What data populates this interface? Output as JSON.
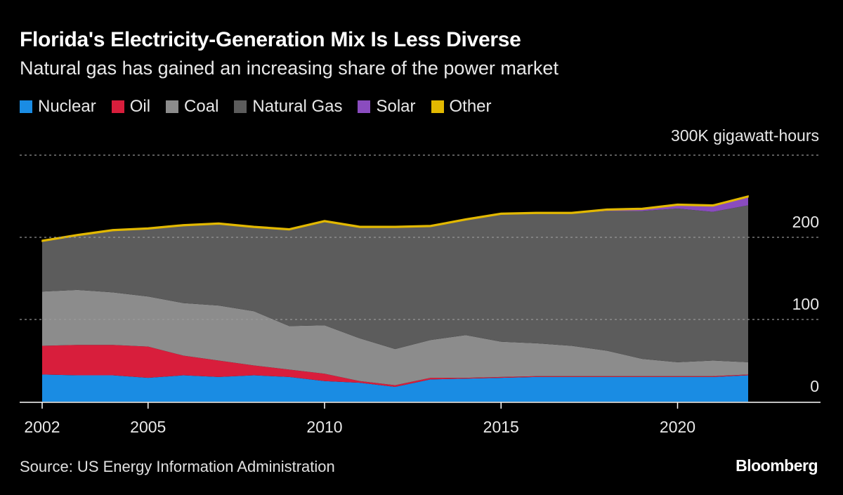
{
  "title": "Florida's Electricity-Generation Mix Is Less Diverse",
  "subtitle": "Natural gas has gained an increasing share of the power market",
  "source": "Source: US Energy Information Administration",
  "logo": "Bloomberg",
  "chart_data": {
    "type": "area",
    "stacked": true,
    "title": "Florida's Electricity-Generation Mix Is Less Diverse",
    "subtitle": "Natural gas has gained an increasing share of the power market",
    "ylabel": "300K gigawatt-hours",
    "ylim": [
      0,
      300
    ],
    "yticks": [
      {
        "value": 0,
        "label": "0"
      },
      {
        "value": 100,
        "label": "100"
      },
      {
        "value": 200,
        "label": "200"
      },
      {
        "value": 300,
        "label": "300K gigawatt-hours"
      }
    ],
    "xticks": [
      2002,
      2005,
      2010,
      2015,
      2020
    ],
    "xtick_labels": [
      "2002",
      "2005",
      "2010",
      "2015",
      "2020"
    ],
    "grid": "horizontal dotted",
    "legend_placement": "top-left",
    "x": [
      2002,
      2003,
      2004,
      2005,
      2006,
      2007,
      2008,
      2009,
      2010,
      2011,
      2012,
      2013,
      2014,
      2015,
      2016,
      2017,
      2018,
      2019,
      2020,
      2021,
      2022
    ],
    "series": [
      {
        "name": "Nuclear",
        "color": "#1a8ce3",
        "values": [
          33,
          32,
          32,
          29,
          32,
          30,
          32,
          30,
          25,
          23,
          18,
          27,
          28,
          29,
          30,
          30,
          30,
          30,
          30,
          30,
          32
        ]
      },
      {
        "name": "Oil",
        "color": "#d81e3c",
        "values": [
          35,
          37,
          37,
          38,
          24,
          20,
          12,
          9,
          9,
          2,
          2,
          2,
          1,
          1,
          1,
          1,
          1,
          1,
          1,
          1,
          1
        ]
      },
      {
        "name": "Coal",
        "color": "#8c8c8c",
        "values": [
          66,
          67,
          64,
          61,
          64,
          67,
          66,
          53,
          59,
          52,
          44,
          46,
          52,
          43,
          40,
          37,
          31,
          21,
          17,
          19,
          15
        ]
      },
      {
        "name": "Natural Gas",
        "color": "#5c5c5c",
        "values": [
          61,
          66,
          75,
          82,
          94,
          99,
          102,
          117,
          126,
          135,
          148,
          138,
          140,
          155,
          158,
          161,
          170,
          180,
          187,
          181,
          191
        ]
      },
      {
        "name": "Solar",
        "color": "#8a4cbf",
        "values": [
          0,
          0,
          0,
          0,
          0,
          0,
          0,
          0,
          0,
          0,
          0,
          0,
          0,
          0,
          0,
          0,
          1,
          2,
          4,
          7,
          10
        ]
      },
      {
        "name": "Other",
        "color": "#e2b800",
        "values": [
          1.5,
          1.5,
          1.5,
          1.5,
          1.5,
          1.5,
          1.5,
          1.5,
          1.5,
          1.5,
          1.5,
          1.5,
          1.5,
          1.5,
          1.5,
          1.5,
          1.5,
          1.5,
          1.5,
          1.5,
          1.5
        ]
      }
    ]
  }
}
